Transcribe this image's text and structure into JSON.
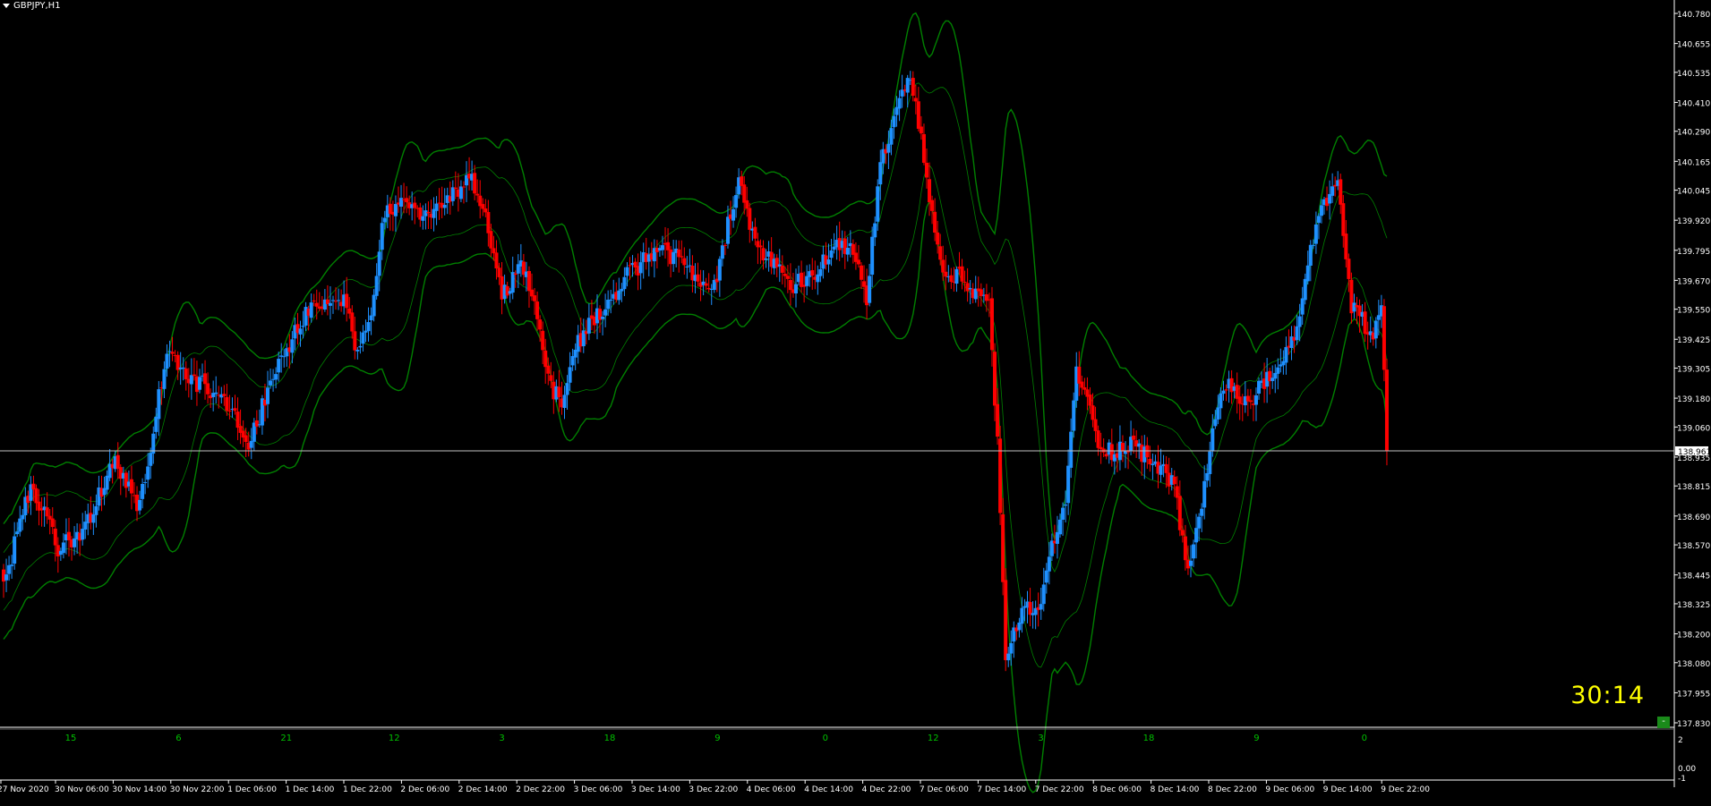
{
  "window": {
    "symbol_label": "GBPJPY,H1",
    "countdown": "30:14",
    "corner_button": "-"
  },
  "colors": {
    "background": "#000000",
    "bull_candle": "#1e90ff",
    "bear_candle": "#ff0000",
    "wick": "#ffffff",
    "bands": "#008000",
    "price_line": "#c0c0c0",
    "countdown": "#ffff00",
    "sub_ticks": "#00c000"
  },
  "chart_data": {
    "type": "candlestick",
    "symbol": "GBPJPY",
    "timeframe": "H1",
    "ylim": [
      137.83,
      140.78
    ],
    "y_ticks": [
      "140.780",
      "140.655",
      "140.535",
      "140.410",
      "140.290",
      "140.165",
      "140.045",
      "139.920",
      "139.795",
      "139.670",
      "139.550",
      "139.425",
      "139.305",
      "139.180",
      "139.060",
      "138.935",
      "138.815",
      "138.690",
      "138.570",
      "138.445",
      "138.325",
      "138.200",
      "138.080",
      "137.955",
      "137.830"
    ],
    "current_price": "138.961",
    "x_time_labels": [
      "27 Nov 2020",
      "30 Nov 06:00",
      "30 Nov 14:00",
      "30 Nov 22:00",
      "1 Dec 06:00",
      "1 Dec 14:00",
      "1 Dec 22:00",
      "2 Dec 06:00",
      "2 Dec 14:00",
      "2 Dec 22:00",
      "3 Dec 06:00",
      "3 Dec 14:00",
      "3 Dec 22:00",
      "4 Dec 06:00",
      "4 Dec 14:00",
      "4 Dec 22:00",
      "7 Dec 06:00",
      "7 Dec 14:00",
      "7 Dec 22:00",
      "8 Dec 06:00",
      "8 Dec 14:00",
      "8 Dec 22:00",
      "9 Dec 06:00",
      "9 Dec 14:00",
      "9 Dec 22:00"
    ],
    "sub_ticks": [
      "15",
      "6",
      "21",
      "12",
      "3",
      "18",
      "9",
      "0",
      "12",
      "3",
      "18",
      "9",
      "0"
    ],
    "sub_ylim_labels": [
      "2",
      "0.00",
      "-1"
    ],
    "anchors": [
      [
        0,
        138.4
      ],
      [
        10,
        138.82
      ],
      [
        20,
        138.56
      ],
      [
        30,
        138.63
      ],
      [
        40,
        138.92
      ],
      [
        50,
        138.72
      ],
      [
        60,
        139.38
      ],
      [
        70,
        139.25
      ],
      [
        80,
        139.2
      ],
      [
        90,
        138.98
      ],
      [
        100,
        139.3
      ],
      [
        110,
        139.52
      ],
      [
        120,
        139.6
      ],
      [
        125,
        139.6
      ],
      [
        130,
        139.35
      ],
      [
        135,
        139.55
      ],
      [
        140,
        139.95
      ],
      [
        145,
        140.0
      ],
      [
        155,
        139.95
      ],
      [
        165,
        140.02
      ],
      [
        172,
        140.1
      ],
      [
        178,
        139.9
      ],
      [
        183,
        139.6
      ],
      [
        190,
        139.75
      ],
      [
        195,
        139.55
      ],
      [
        200,
        139.25
      ],
      [
        205,
        139.15
      ],
      [
        210,
        139.4
      ],
      [
        220,
        139.55
      ],
      [
        230,
        139.7
      ],
      [
        240,
        139.8
      ],
      [
        250,
        139.75
      ],
      [
        260,
        139.6
      ],
      [
        265,
        139.85
      ],
      [
        270,
        140.1
      ],
      [
        275,
        139.85
      ],
      [
        282,
        139.75
      ],
      [
        290,
        139.65
      ],
      [
        298,
        139.7
      ],
      [
        305,
        139.8
      ],
      [
        312,
        139.8
      ],
      [
        317,
        139.6
      ],
      [
        322,
        140.15
      ],
      [
        327,
        140.35
      ],
      [
        333,
        140.5
      ],
      [
        337,
        140.25
      ],
      [
        342,
        139.85
      ],
      [
        347,
        139.65
      ],
      [
        352,
        139.7
      ],
      [
        357,
        139.6
      ],
      [
        362,
        139.55
      ],
      [
        365,
        139.0
      ],
      [
        368,
        138.1
      ],
      [
        371,
        138.2
      ],
      [
        375,
        138.3
      ],
      [
        380,
        138.3
      ],
      [
        385,
        138.55
      ],
      [
        390,
        138.75
      ],
      [
        394,
        139.3
      ],
      [
        397,
        139.2
      ],
      [
        402,
        139.0
      ],
      [
        408,
        138.95
      ],
      [
        414,
        139.0
      ],
      [
        420,
        138.93
      ],
      [
        425,
        138.9
      ],
      [
        430,
        138.8
      ],
      [
        435,
        138.45
      ],
      [
        440,
        138.75
      ],
      [
        445,
        139.1
      ],
      [
        450,
        139.25
      ],
      [
        455,
        139.15
      ],
      [
        460,
        139.2
      ],
      [
        468,
        139.3
      ],
      [
        475,
        139.45
      ],
      [
        478,
        139.7
      ],
      [
        482,
        139.9
      ],
      [
        486,
        140.0
      ],
      [
        490,
        140.1
      ],
      [
        492,
        139.85
      ],
      [
        495,
        139.55
      ],
      [
        499,
        139.5
      ],
      [
        503,
        139.4
      ],
      [
        506,
        139.6
      ],
      [
        508,
        138.96
      ]
    ]
  }
}
